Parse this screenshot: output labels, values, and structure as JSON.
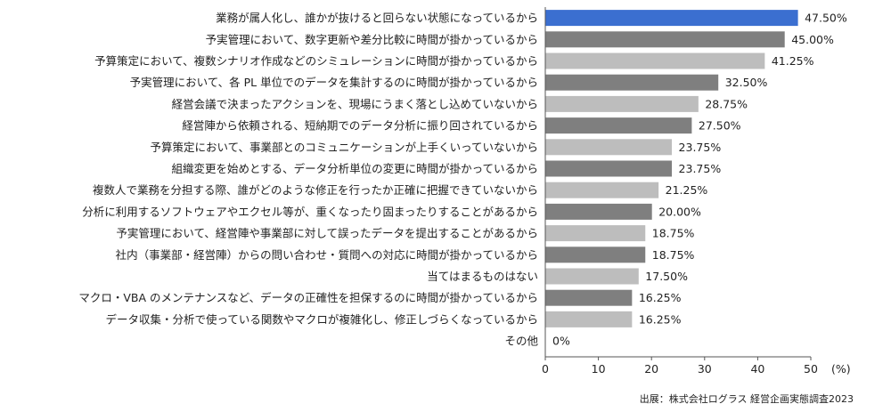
{
  "chart_data": {
    "type": "bar",
    "orientation": "horizontal",
    "categories": [
      "業務が属人化し、誰かが抜けると回らない状態になっているから",
      "予実管理において、数字更新や差分比較に時間が掛かっているから",
      "予算策定において、複数シナリオ作成などのシミュレーションに時間が掛かっているから",
      "予実管理において、各 PL 単位でのデータを集計するのに時間が掛かっているから",
      "経営会議で決まったアクションを、現場にうまく落とし込めていないから",
      "経営陣から依頼される、短納期でのデータ分析に振り回されているから",
      "予算策定において、事業部とのコミュニケーションが上手くいっていないから",
      "組織変更を始めとする、データ分析単位の変更に時間が掛かっているから",
      "複数人で業務を分担する際、誰がどのような修正を行ったか正確に把握できていないから",
      "分析に利用するソフトウェアやエクセル等が、重くなったり固まったりすることがあるから",
      "予実管理において、経営陣や事業部に対して誤ったデータを提出することがあるから",
      "社内（事業部・経営陣）からの問い合わせ・質問への対応に時間が掛かっているから",
      "当てはまるものはない",
      "マクロ・VBA のメンテナンスなど、データの正確性を担保するのに時間が掛かっているから",
      "データ収集・分析で使っている関数やマクロが複雑化し、修正しづらくなっているから",
      "その他"
    ],
    "values": [
      47.5,
      45.0,
      41.25,
      32.5,
      28.75,
      27.5,
      23.75,
      23.75,
      21.25,
      20.0,
      18.75,
      18.75,
      17.5,
      16.25,
      16.25,
      0
    ],
    "value_labels": [
      "47.50%",
      "45.00%",
      "41.25%",
      "32.50%",
      "28.75%",
      "27.50%",
      "23.75%",
      "23.75%",
      "21.25%",
      "20.00%",
      "18.75%",
      "18.75%",
      "17.50%",
      "16.25%",
      "16.25%",
      "0%"
    ],
    "bar_colors": [
      "#3b6fd0",
      "#7f7f7f",
      "#bdbdbd",
      "#7f7f7f",
      "#bdbdbd",
      "#7f7f7f",
      "#bdbdbd",
      "#7f7f7f",
      "#bdbdbd",
      "#7f7f7f",
      "#bdbdbd",
      "#7f7f7f",
      "#bdbdbd",
      "#7f7f7f",
      "#bdbdbd",
      "#7f7f7f"
    ],
    "xticks": [
      "0",
      "10",
      "20",
      "30",
      "40",
      "50"
    ],
    "xlim": [
      0,
      50
    ],
    "unit": "(%)",
    "grid": false,
    "source": "出展：株式会社ログラス 経営企画実態調査2023"
  }
}
